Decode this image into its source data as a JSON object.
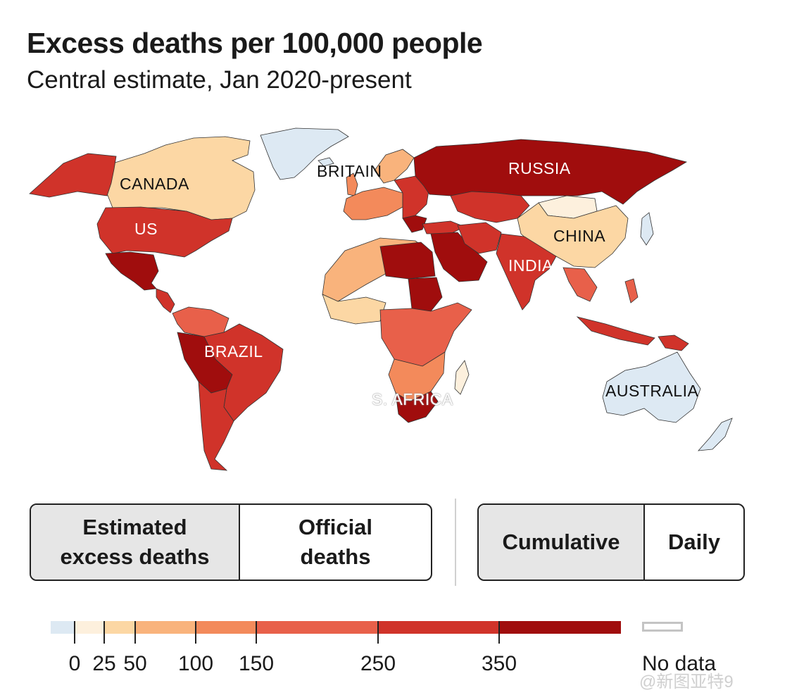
{
  "header": {
    "title": "Excess deaths per 100,000 people",
    "subtitle": "Central estimate, Jan 2020-present"
  },
  "map": {
    "labels": {
      "canada": "CANADA",
      "us": "US",
      "britain": "BRITAIN",
      "russia": "RUSSIA",
      "china": "CHINA",
      "india": "INDIA",
      "brazil": "BRAZIL",
      "s_africa": "S. AFRICA",
      "australia": "AUSTRALIA"
    },
    "colors": {
      "band_0_25": "#fdf0dd",
      "band_25_50": "#fcd7a4",
      "band_50_100": "#f9b37c",
      "band_100_150": "#f38a5b",
      "band_150_250": "#e8604a",
      "band_250_350": "#d0332a",
      "band_350_plus": "#a00d0d",
      "negative": "#dde9f3",
      "no_data": "#ffffff"
    }
  },
  "toggles": {
    "measure": {
      "options": [
        "Estimated\nexcess deaths",
        "Official\ndeaths"
      ],
      "opt1_line1": "Estimated",
      "opt1_line2": "excess deaths",
      "opt2_line1": "Official",
      "opt2_line2": "deaths",
      "active": "Estimated excess deaths"
    },
    "period": {
      "opt1": "Cumulative",
      "opt2": "Daily",
      "active": "Cumulative"
    }
  },
  "legend": {
    "ticks": [
      "0",
      "25",
      "50",
      "100",
      "150",
      "250",
      "350"
    ],
    "no_data": "No data"
  },
  "watermark": "@新图亚特9"
}
